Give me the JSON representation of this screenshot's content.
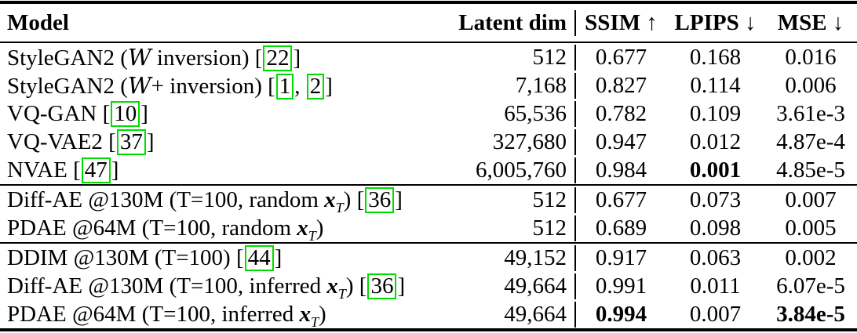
{
  "colors": {
    "citation_border": "#00dc00",
    "text": "#000000",
    "background": "#ffffff"
  },
  "table": {
    "headers": {
      "model": "Model",
      "latent_dim": "Latent dim",
      "ssim": "SSIM ↑",
      "lpips": "LPIPS ↓",
      "mse": "MSE ↓"
    },
    "groups": [
      {
        "rows": [
          {
            "model": [
              {
                "t": "StyleGAN2 ("
              },
              {
                "cal": "W"
              },
              {
                "t": " inversion) "
              },
              {
                "cite": [
                  "22"
                ]
              }
            ],
            "latent": "512",
            "ssim": "0.677",
            "lpips": "0.168",
            "mse": "0.016"
          },
          {
            "model": [
              {
                "t": "StyleGAN2 ("
              },
              {
                "cal": "W"
              },
              {
                "t": "+ inversion) "
              },
              {
                "cite": [
                  "1",
                  "2"
                ]
              }
            ],
            "latent": "7,168",
            "ssim": "0.827",
            "lpips": "0.114",
            "mse": "0.006"
          },
          {
            "model": [
              {
                "t": "VQ-GAN "
              },
              {
                "cite": [
                  "10"
                ]
              }
            ],
            "latent": "65,536",
            "ssim": "0.782",
            "lpips": "0.109",
            "mse": "3.61e-3"
          },
          {
            "model": [
              {
                "t": "VQ-VAE2 "
              },
              {
                "cite": [
                  "37"
                ]
              }
            ],
            "latent": "327,680",
            "ssim": "0.947",
            "lpips": "0.012",
            "mse": "4.87e-4"
          },
          {
            "model": [
              {
                "t": "NVAE "
              },
              {
                "cite": [
                  "47"
                ]
              }
            ],
            "latent": "6,005,760",
            "ssim": "0.984",
            "lpips": "0.001",
            "lpips_bold": true,
            "mse": "4.85e-5"
          }
        ]
      },
      {
        "rows": [
          {
            "model": [
              {
                "t": "Diff-AE @130M (T=100, random "
              },
              {
                "msub": [
                  "x",
                  "T"
                ]
              },
              {
                "t": ") "
              },
              {
                "cite": [
                  "36"
                ]
              }
            ],
            "latent": "512",
            "ssim": "0.677",
            "lpips": "0.073",
            "mse": "0.007"
          },
          {
            "model": [
              {
                "t": "PDAE @64M (T=100, random "
              },
              {
                "msub": [
                  "x",
                  "T"
                ]
              },
              {
                "t": ")"
              }
            ],
            "latent": "512",
            "ssim": "0.689",
            "lpips": "0.098",
            "mse": "0.005"
          }
        ]
      },
      {
        "rows": [
          {
            "model": [
              {
                "t": "DDIM @130M (T=100) "
              },
              {
                "cite": [
                  "44"
                ]
              }
            ],
            "latent": "49,152",
            "ssim": "0.917",
            "lpips": "0.063",
            "mse": "0.002"
          },
          {
            "model": [
              {
                "t": "Diff-AE @130M (T=100, inferred "
              },
              {
                "msub": [
                  "x",
                  "T"
                ]
              },
              {
                "t": ") "
              },
              {
                "cite": [
                  "36"
                ]
              }
            ],
            "latent": "49,664",
            "ssim": "0.991",
            "lpips": "0.011",
            "mse": "6.07e-5"
          },
          {
            "model": [
              {
                "t": "PDAE @64M (T=100, inferred "
              },
              {
                "msub": [
                  "x",
                  "T"
                ]
              },
              {
                "t": ")"
              }
            ],
            "latent": "49,664",
            "ssim": "0.994",
            "ssim_bold": true,
            "lpips": "0.007",
            "mse": "3.84e-5",
            "mse_bold": true
          }
        ]
      }
    ]
  }
}
